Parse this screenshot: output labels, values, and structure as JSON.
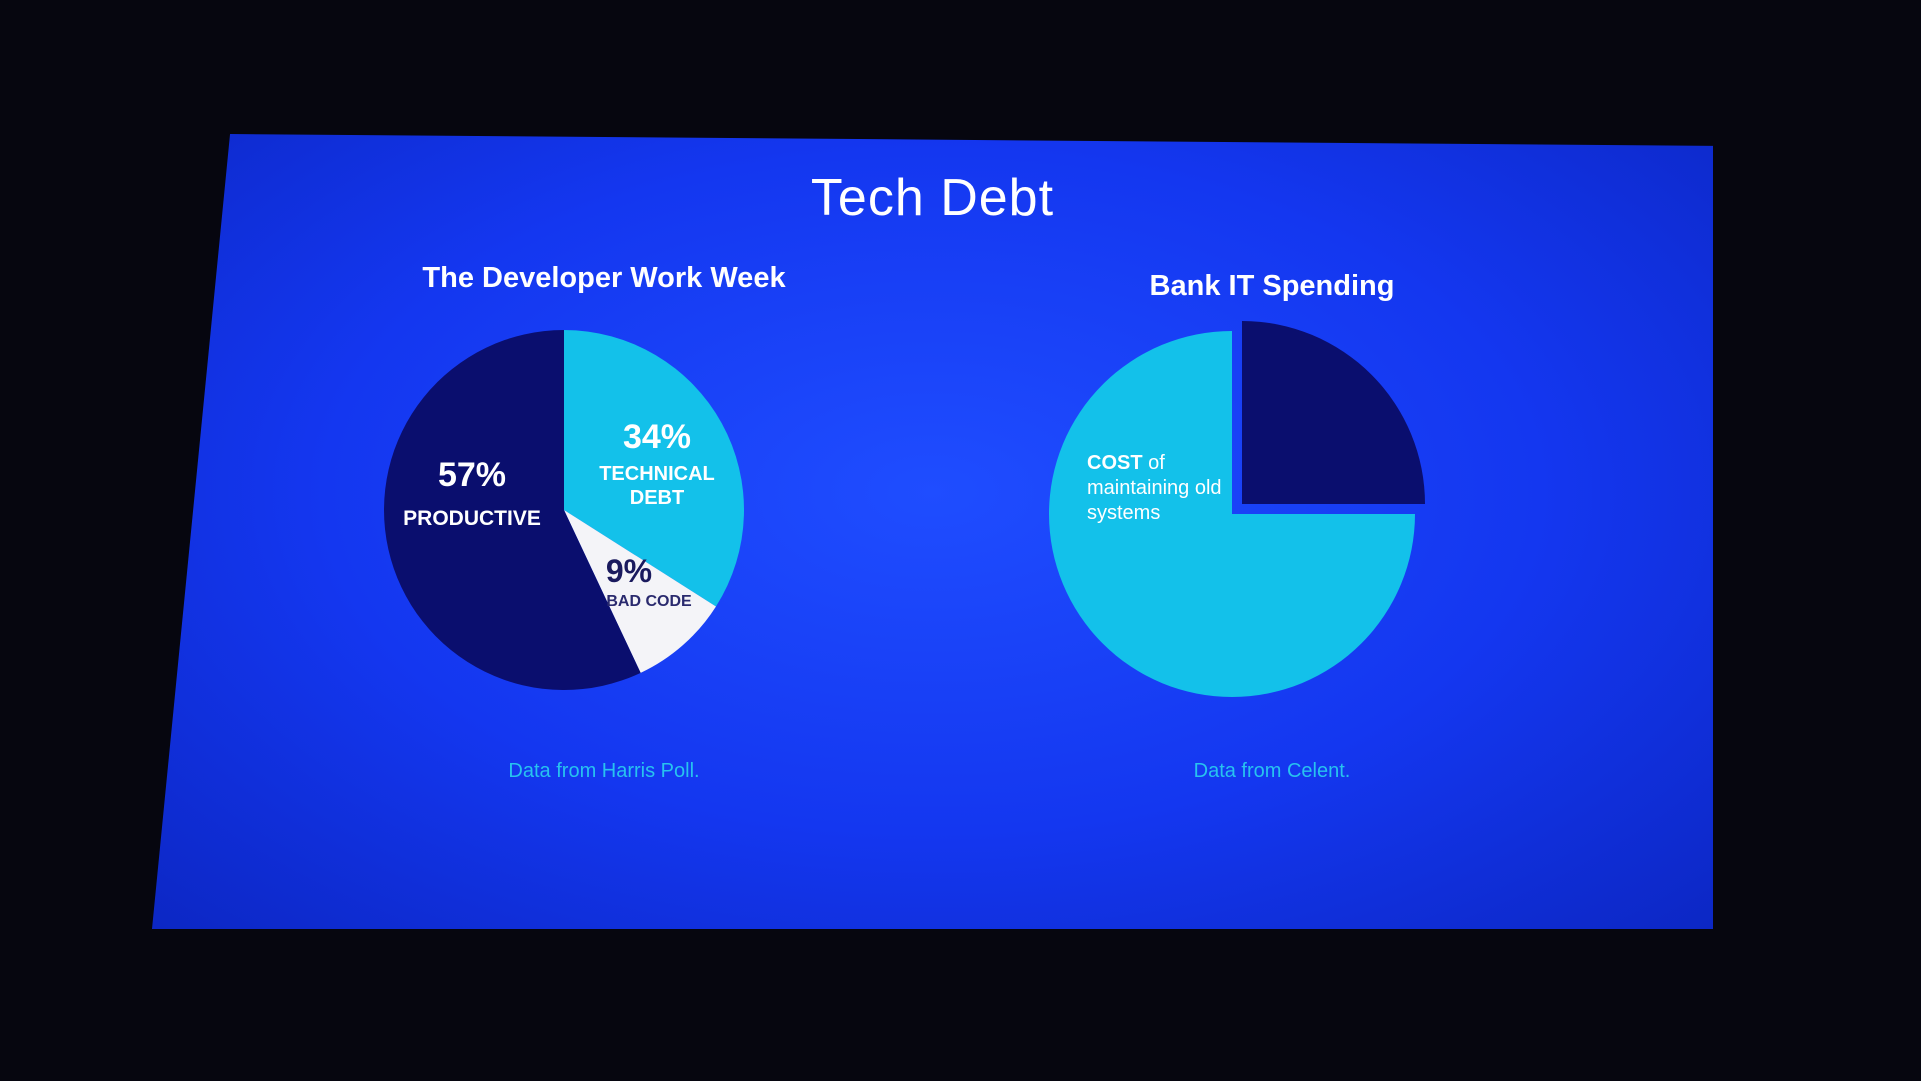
{
  "slide": {
    "title": "Tech Debt"
  },
  "colors": {
    "dark": "#0a0e6e",
    "cyan": "#13c1ea",
    "white": "#f4f4f8",
    "source_text": "#27c3ef"
  },
  "chart_data": [
    {
      "type": "pie",
      "title": "The Developer Work Week",
      "source": "Data from Harris Poll.",
      "slices": [
        {
          "pct": "57%",
          "value": 57,
          "label": "PRODUCTIVE",
          "color": "#0a0e6e"
        },
        {
          "pct": "34%",
          "value": 34,
          "label_lines": [
            "TECHNICAL",
            "DEBT"
          ],
          "color": "#13c1ea"
        },
        {
          "pct": "9%",
          "value": 9,
          "label": "BAD CODE",
          "color": "#f4f4f8"
        }
      ]
    },
    {
      "type": "pie",
      "title": "Bank IT Spending",
      "source": "Data from Celent.",
      "slices": [
        {
          "value": 75,
          "label_lines": [
            "COST of",
            "maintaining old",
            "systems"
          ],
          "color": "#13c1ea"
        },
        {
          "value": 25,
          "color": "#0a0e6e",
          "exploded": true
        }
      ]
    }
  ]
}
